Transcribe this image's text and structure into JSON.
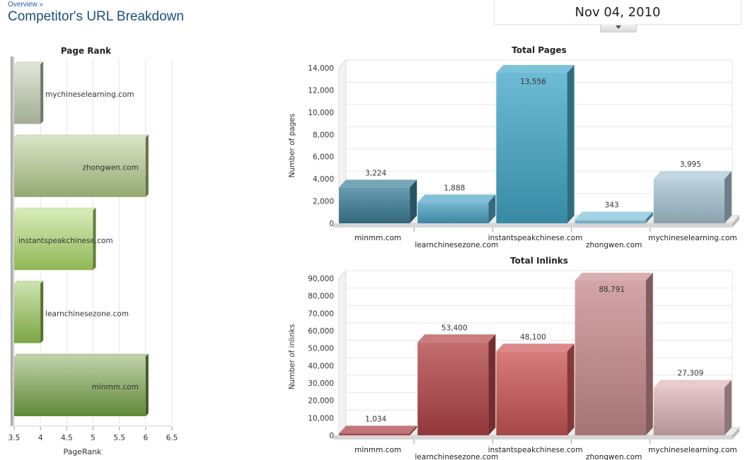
{
  "header": {
    "breadcrumb": "Overview »",
    "title": "Competitor's URL Breakdown",
    "date": "Nov 04, 2010"
  },
  "chart_data": [
    {
      "type": "bar",
      "orientation": "horizontal",
      "title": "Page Rank",
      "xlabel": "PageRank",
      "ylabel": "",
      "xlim": [
        3.5,
        6.5
      ],
      "ticks": [
        "3.5",
        "4",
        "4.5",
        "5",
        "5.5",
        "6",
        "6.5"
      ],
      "categories": [
        "mychineselearning.com",
        "zhongwen.com",
        "instantspeakchinese.com",
        "learnchinesezone.com",
        "minmm.com"
      ],
      "values": [
        4,
        6,
        5,
        4,
        6
      ],
      "colors": [
        "#b8c4a8",
        "#a8c080",
        "#a4d060",
        "#8cbc4c",
        "#6e9a40"
      ],
      "grid": true
    },
    {
      "type": "bar",
      "title": "Total Pages",
      "xlabel": "",
      "ylabel": "Number of pages",
      "ylim": [
        0,
        14000
      ],
      "ticks": [
        "0",
        "2,000",
        "4,000",
        "6,000",
        "8,000",
        "10,000",
        "12,000",
        "14,000"
      ],
      "categories": [
        "minmm.com",
        "learnchinesezone.com",
        "instantspeakchinese.com",
        "zhongwen.com",
        "mychineselearning.com"
      ],
      "values": [
        3224,
        1888,
        13556,
        343,
        3995
      ],
      "labels": [
        "3,224",
        "1,888",
        "13,556",
        "343",
        "3,995"
      ],
      "colors": [
        "#3d7f99",
        "#4ea4c4",
        "#44a8c8",
        "#7cc0d8",
        "#a8c4d4"
      ],
      "grid": true
    },
    {
      "type": "bar",
      "title": "Total Inlinks",
      "xlabel": "",
      "ylabel": "Number of inlinks",
      "ylim": [
        0,
        90000
      ],
      "ticks": [
        "0",
        "10,000",
        "20,000",
        "30,000",
        "40,000",
        "50,000",
        "60,000",
        "70,000",
        "80,000",
        "90,000"
      ],
      "categories": [
        "minmm.com",
        "learnchinesezone.com",
        "instantspeakchinese.com",
        "zhongwen.com",
        "mychineselearning.com"
      ],
      "values": [
        1034,
        53400,
        48100,
        88791,
        27309
      ],
      "labels": [
        "1,034",
        "53,400",
        "48,100",
        "88,791",
        "27,309"
      ],
      "colors": [
        "#a83a3e",
        "#b24448",
        "#cc5656",
        "#c88c90",
        "#dcb4b8"
      ],
      "grid": true
    }
  ]
}
